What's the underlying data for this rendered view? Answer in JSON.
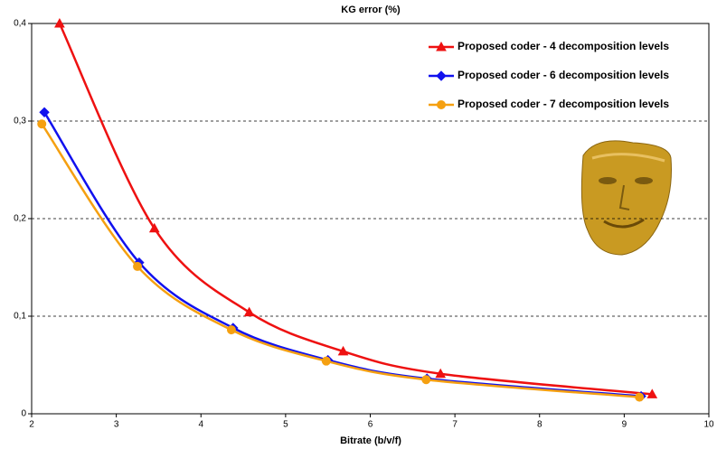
{
  "chart_data": {
    "type": "line",
    "title": "KG error (%)",
    "xlabel": "Bitrate (b/v/f)",
    "xlim": [
      2,
      10
    ],
    "xticks": [
      2,
      3,
      4,
      5,
      6,
      7,
      8,
      9,
      10
    ],
    "ylim": [
      0,
      0.4
    ],
    "yticks": [
      {
        "value": 0,
        "label": "0"
      },
      {
        "value": 0.1,
        "label": "0,1"
      },
      {
        "value": 0.2,
        "label": "0,2"
      },
      {
        "value": 0.3,
        "label": "0,3"
      },
      {
        "value": 0.4,
        "label": "0,4"
      }
    ],
    "grid": true,
    "legend": "upper right",
    "series": [
      {
        "name": "Proposed coder - 4 decomposition levels",
        "color": "#ee1111",
        "marker": "triangle",
        "x": [
          2.33,
          3.45,
          4.57,
          5.68,
          6.83,
          9.33
        ],
        "values": [
          0.4,
          0.19,
          0.104,
          0.064,
          0.041,
          0.02
        ]
      },
      {
        "name": "Proposed coder - 6 decomposition levels",
        "color": "#1111ee",
        "marker": "diamond",
        "x": [
          2.15,
          3.27,
          4.38,
          5.5,
          6.67,
          9.2
        ],
        "values": [
          0.309,
          0.155,
          0.088,
          0.055,
          0.036,
          0.018
        ]
      },
      {
        "name": "Proposed coder - 7 decomposition levels",
        "color": "#f5a011",
        "marker": "circle",
        "x": [
          2.12,
          3.25,
          4.36,
          5.48,
          6.66,
          9.18
        ],
        "values": [
          0.297,
          0.151,
          0.086,
          0.054,
          0.035,
          0.017
        ]
      }
    ]
  }
}
